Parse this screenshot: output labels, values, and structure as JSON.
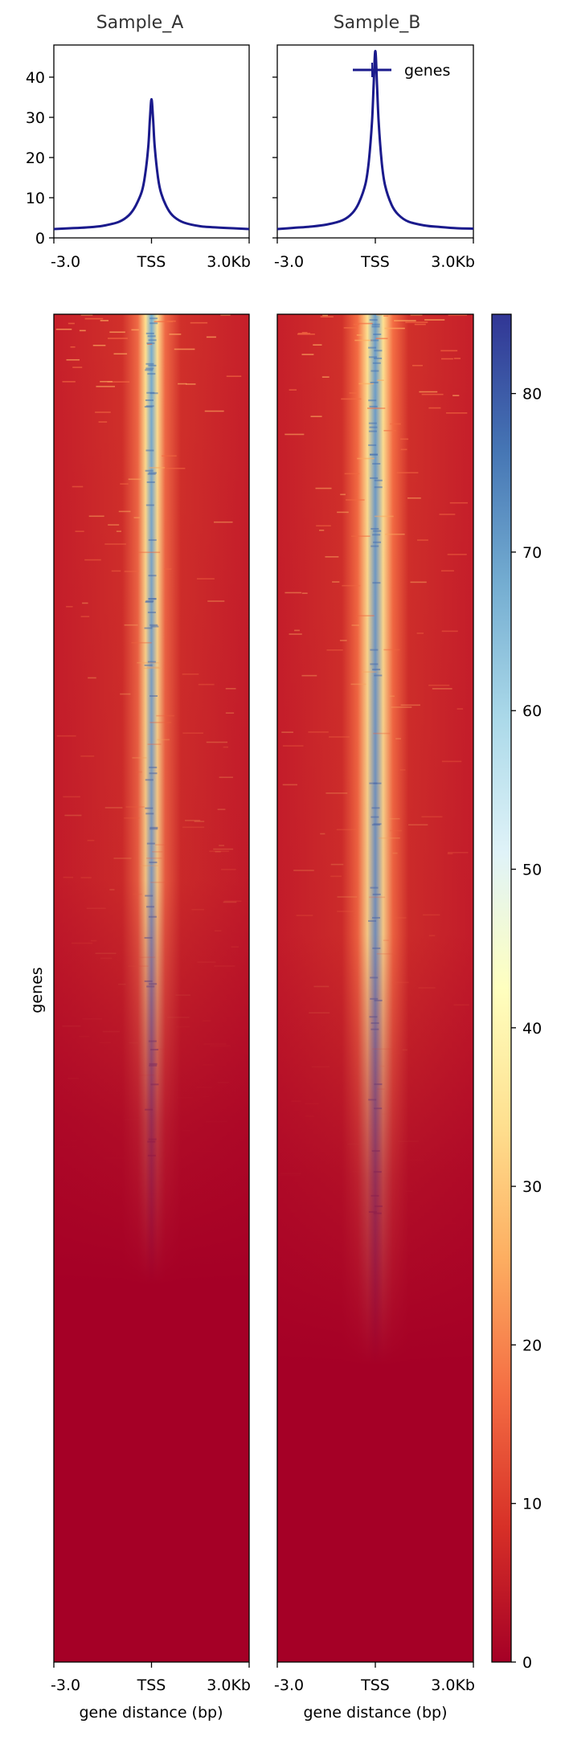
{
  "chart_data": [
    {
      "type": "line",
      "title": "Sample_A",
      "x_tick_labels": [
        "-3.0",
        "TSS",
        "3.0Kb"
      ],
      "x": [
        -3000,
        -2500,
        -2000,
        -1500,
        -1000,
        -700,
        -500,
        -300,
        -200,
        -100,
        -50,
        0,
        50,
        100,
        200,
        300,
        500,
        700,
        1000,
        1500,
        2000,
        2500,
        3000
      ],
      "series": [
        {
          "name": "genes",
          "color": "#1a1a8c",
          "values": [
            2.2,
            2.4,
            2.6,
            3.0,
            4.0,
            5.6,
            7.8,
            11.5,
            15.5,
            22.5,
            29.5,
            34.5,
            29.5,
            22.5,
            15.0,
            11.0,
            7.2,
            5.2,
            3.8,
            2.9,
            2.6,
            2.4,
            2.2
          ]
        }
      ],
      "yticks": [
        "0",
        "10",
        "20",
        "30",
        "40"
      ],
      "ylim": [
        0,
        48
      ]
    },
    {
      "type": "line",
      "title": "Sample_B",
      "x_tick_labels": [
        "-3.0",
        "TSS",
        "3.0Kb"
      ],
      "x": [
        -3000,
        -2500,
        -2000,
        -1500,
        -1000,
        -700,
        -500,
        -300,
        -200,
        -100,
        -50,
        0,
        50,
        100,
        200,
        300,
        500,
        700,
        1000,
        1500,
        2000,
        2500,
        3000
      ],
      "series": [
        {
          "name": "genes",
          "color": "#1a1a8c",
          "values": [
            2.2,
            2.5,
            2.8,
            3.3,
            4.4,
            6.2,
            8.8,
            13.5,
            19.0,
            29.0,
            38.5,
            46.5,
            38.5,
            29.0,
            18.5,
            13.0,
            8.2,
            5.8,
            4.1,
            3.1,
            2.7,
            2.4,
            2.3
          ]
        }
      ],
      "legend": {
        "position": "top-right",
        "entries": [
          "genes"
        ]
      },
      "ylim": [
        0,
        48
      ]
    },
    {
      "type": "heatmap",
      "panels": [
        "Sample_A",
        "Sample_B"
      ],
      "x_tick_labels": [
        "-3.0",
        "TSS",
        "3.0Kb"
      ],
      "xlabel": "gene distance (bp)",
      "ylabel": "genes",
      "rows_sorted_by_signal": true,
      "peak_fraction_of_rows": [
        0.66,
        0.72
      ],
      "colormap": "RdYlBu",
      "colorbar": {
        "min": 0,
        "max": 85,
        "ticks": [
          "0",
          "10",
          "20",
          "30",
          "40",
          "50",
          "60",
          "70",
          "80"
        ],
        "colors": [
          "#a50026",
          "#d73027",
          "#f46d43",
          "#fdae61",
          "#fee090",
          "#ffffbf",
          "#e0f3f8",
          "#abd9e9",
          "#74add1",
          "#4575b4",
          "#313695"
        ]
      }
    }
  ]
}
